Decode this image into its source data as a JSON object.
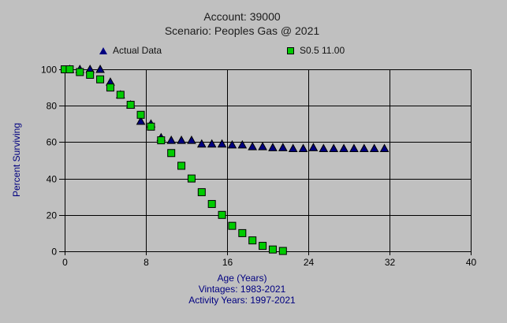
{
  "window": {
    "background": "#c0c0c0"
  },
  "header": {
    "title": "Account: 39000",
    "subtitle": "Scenario: Peoples Gas @ 2021"
  },
  "legend": [
    {
      "label": "Actual Data",
      "marker": "triangle",
      "color": "#000080"
    },
    {
      "label": "S0.5 11.00",
      "marker": "square",
      "color": "#00cc00"
    }
  ],
  "footer": {
    "xlabel": "Age (Years)",
    "vintages": "Vintages: 1983-2021",
    "activity_years": "Activity Years: 1997-2021"
  },
  "colors": {
    "background": "#c0c0c0",
    "grid": "#000000",
    "tick_text": "#000000",
    "axis_title_text": "#000080",
    "actual_series": "#000080",
    "curve_series": "#00cc00"
  },
  "chart_data": {
    "type": "scatter",
    "title": "Account: 39000",
    "subtitle": "Scenario: Peoples Gas @ 2021",
    "xlabel": "Age (Years)",
    "ylabel": "Percent Surviving",
    "xlim": [
      0,
      40
    ],
    "ylim": [
      0,
      100
    ],
    "x_ticks": [
      0,
      8,
      16,
      24,
      32,
      40
    ],
    "y_ticks": [
      0,
      20,
      40,
      60,
      80,
      100
    ],
    "grid": true,
    "legend_position": "top",
    "notes": [
      "Vintages: 1983-2021",
      "Activity Years: 1997-2021"
    ],
    "series": [
      {
        "name": "Actual Data",
        "marker": "triangle",
        "color": "#000080",
        "points": [
          [
            0.5,
            100
          ],
          [
            1.5,
            100
          ],
          [
            2.5,
            100
          ],
          [
            3.5,
            100
          ],
          [
            4.5,
            93
          ],
          [
            5.5,
            86
          ],
          [
            6.5,
            80.5
          ],
          [
            7.5,
            71.5
          ],
          [
            8.5,
            70
          ],
          [
            9.5,
            62.5
          ],
          [
            10.5,
            61
          ],
          [
            11.5,
            61
          ],
          [
            12.5,
            61
          ],
          [
            13.5,
            59
          ],
          [
            14.5,
            59
          ],
          [
            15.5,
            59
          ],
          [
            16.5,
            58.5
          ],
          [
            17.5,
            58.5
          ],
          [
            18.5,
            57.5
          ],
          [
            19.5,
            57.5
          ],
          [
            20.5,
            57
          ],
          [
            21.5,
            57
          ],
          [
            22.5,
            56.5
          ],
          [
            23.5,
            56.5
          ],
          [
            24.5,
            57
          ],
          [
            25.5,
            56.5
          ],
          [
            26.5,
            56.5
          ],
          [
            27.5,
            56.5
          ],
          [
            28.5,
            56.5
          ],
          [
            29.5,
            56.5
          ],
          [
            30.5,
            56.5
          ],
          [
            31.5,
            56.5
          ]
        ]
      },
      {
        "name": "S0.5 11.00",
        "marker": "square",
        "color": "#00cc00",
        "points": [
          [
            0,
            100
          ],
          [
            0.5,
            100
          ],
          [
            1.5,
            98.5
          ],
          [
            2.5,
            97
          ],
          [
            3.5,
            94.5
          ],
          [
            4.5,
            90
          ],
          [
            5.5,
            86
          ],
          [
            6.5,
            80.5
          ],
          [
            7.5,
            75
          ],
          [
            8.5,
            68.5
          ],
          [
            9.5,
            61
          ],
          [
            10.5,
            54
          ],
          [
            11.5,
            47
          ],
          [
            12.5,
            40
          ],
          [
            13.5,
            32.5
          ],
          [
            14.5,
            26
          ],
          [
            15.5,
            20
          ],
          [
            16.5,
            14
          ],
          [
            17.5,
            10
          ],
          [
            18.5,
            6
          ],
          [
            19.5,
            3
          ],
          [
            20.5,
            1
          ],
          [
            21.5,
            0.2
          ]
        ]
      }
    ]
  }
}
